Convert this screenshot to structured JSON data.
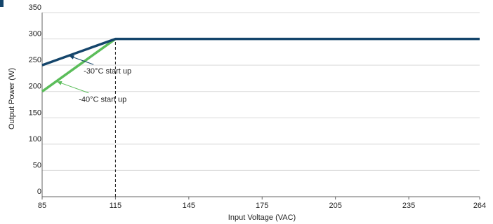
{
  "chart_data": {
    "type": "line",
    "title": "",
    "xlabel": "Input Voltage (VAC)",
    "ylabel": "Output Power (W)",
    "xlim": [
      85,
      264
    ],
    "ylim": [
      0,
      350
    ],
    "x_ticks": [
      85,
      115,
      145,
      175,
      205,
      235,
      264
    ],
    "y_ticks": [
      0,
      50,
      100,
      150,
      200,
      250,
      300,
      350
    ],
    "grid": "horizontal",
    "series": [
      {
        "points": [
          [
            85,
            250
          ],
          [
            115,
            300
          ],
          [
            264,
            300
          ]
        ],
        "color": "#14456b"
      },
      {
        "points": [
          [
            85,
            200
          ],
          [
            115,
            300
          ]
        ],
        "color": "#5bbd5a"
      }
    ],
    "reference_lines": [
      {
        "x": 115,
        "y_from": 0,
        "y_to": 300,
        "style": "dashed"
      }
    ],
    "annotations": [
      {
        "text": "-30°C start up",
        "series": 0,
        "arrow_to": [
          96,
          268
        ],
        "text_at": [
          102,
          234
        ]
      },
      {
        "text": "-40°C start up",
        "series": 1,
        "arrow_to": [
          91,
          219
        ],
        "text_at": [
          100,
          180
        ]
      }
    ]
  },
  "colors": {
    "grid": "#d9d9d9",
    "axis": "#666666",
    "reference": "#111111",
    "text": "#222222"
  }
}
